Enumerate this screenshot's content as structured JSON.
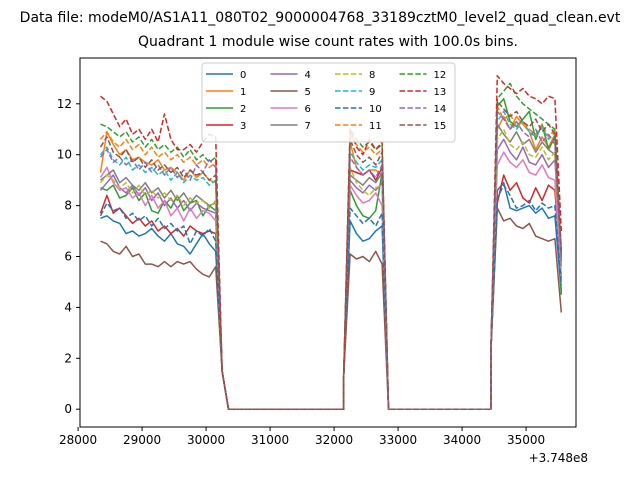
{
  "figure": {
    "suptitle": "Data file: modeM0/AS1A11_080T02_9000004768_33189cztM0_level2_quad_clean.evt",
    "title": "Quadrant 1 module wise count rates with 100.0s bins.",
    "x_offset_label": "+3.748e8"
  },
  "chart_data": {
    "type": "line",
    "title": "Quadrant 1 module wise count rates with 100.0s bins.",
    "xlabel": "",
    "ylabel": "",
    "x_offset": 374800000,
    "xlim": [
      28030,
      35780
    ],
    "ylim": [
      -0.7,
      13.8
    ],
    "xticks": [
      28000,
      29000,
      30000,
      31000,
      32000,
      33000,
      34000,
      35000
    ],
    "yticks": [
      0,
      2,
      4,
      6,
      8,
      10,
      12
    ],
    "grid": false,
    "legend": {
      "placement": "top-center",
      "columns": 4
    },
    "bin_width": 100,
    "segments": [
      {
        "x_start": 28350,
        "x_end": 30150,
        "y_end_drop": [
          1.5,
          0.0
        ]
      },
      {
        "x_start": 32250,
        "x_end": 32750
      },
      {
        "x_start": 34550,
        "x_end": 35450
      }
    ],
    "gap_ranges": [
      [
        30350,
        32150
      ],
      [
        32850,
        34450
      ]
    ],
    "series": [
      {
        "name": "0",
        "color": "#1f77b4",
        "dash": "solid",
        "seg1": [
          7.5,
          7.6,
          7.4,
          7.3,
          6.9,
          7.0,
          6.8,
          6.9,
          7.1,
          6.8,
          6.6,
          6.9,
          6.5,
          6.4,
          6.1,
          6.5,
          6.9,
          6.5,
          6.2
        ],
        "seg2": [
          7.4,
          6.9,
          6.6,
          6.7,
          7.0,
          7.2
        ],
        "seg3": [
          8.6,
          8.9,
          7.9,
          7.8,
          7.9,
          8.0,
          7.7,
          7.9,
          7.5,
          7.6,
          4.6
        ]
      },
      {
        "name": "1",
        "color": "#ff7f0e",
        "dash": "solid",
        "seg1": [
          9.3,
          10.9,
          10.4,
          10.0,
          10.2,
          9.8,
          9.9,
          9.7,
          9.6,
          9.8,
          9.4,
          9.5,
          9.3,
          9.0,
          9.4,
          9.1,
          9.3,
          9.0,
          8.9
        ],
        "seg2": [
          10.5,
          9.5,
          9.2,
          9.4,
          9.4,
          9.2
        ],
        "seg3": [
          11.0,
          11.5,
          11.0,
          11.5,
          11.2,
          10.9,
          10.2,
          10.7,
          10.3,
          10.8,
          5.6
        ]
      },
      {
        "name": "2",
        "color": "#2ca02c",
        "dash": "solid",
        "seg1": [
          8.7,
          8.6,
          8.8,
          8.3,
          8.4,
          8.7,
          8.2,
          8.5,
          7.8,
          7.7,
          8.2,
          7.9,
          8.4,
          7.8,
          8.1,
          8.2,
          7.6,
          8.0,
          7.8
        ],
        "seg2": [
          8.6,
          8.0,
          7.6,
          7.5,
          7.8,
          9.3
        ],
        "seg3": [
          11.9,
          12.2,
          11.3,
          11.1,
          11.4,
          11.7,
          10.6,
          11.2,
          10.2,
          10.7,
          4.5
        ]
      },
      {
        "name": "3",
        "color": "#d62728",
        "dash": "solid",
        "seg1": [
          7.7,
          8.4,
          7.7,
          7.9,
          7.6,
          7.3,
          7.5,
          7.2,
          7.4,
          7.0,
          7.2,
          6.9,
          7.1,
          6.8,
          7.2,
          7.0,
          6.9,
          7.0,
          6.9
        ],
        "seg2": [
          9.4,
          9.3,
          9.2,
          9.4,
          9.0,
          9.5
        ],
        "seg3": [
          8.1,
          9.2,
          8.6,
          8.9,
          8.3,
          8.1,
          8.7,
          8.2,
          8.8,
          8.6,
          5.2
        ]
      },
      {
        "name": "4",
        "color": "#9467bd",
        "dash": "solid",
        "seg1": [
          8.6,
          8.9,
          9.2,
          8.7,
          8.5,
          8.8,
          8.4,
          8.7,
          8.2,
          8.5,
          8.0,
          8.3,
          7.9,
          8.2,
          7.8,
          8.1,
          7.9,
          7.8,
          7.7
        ],
        "seg2": [
          9.0,
          8.7,
          8.5,
          8.8,
          8.6,
          8.9
        ],
        "seg3": [
          10.2,
          10.6,
          10.1,
          9.8,
          10.3,
          9.7,
          9.6,
          10.0,
          9.5,
          9.8,
          6.0
        ]
      },
      {
        "name": "5",
        "color": "#8c564b",
        "dash": "solid",
        "seg1": [
          6.6,
          6.5,
          6.2,
          6.1,
          6.4,
          6.0,
          6.1,
          5.7,
          5.7,
          5.6,
          5.8,
          5.6,
          5.8,
          5.7,
          5.8,
          5.5,
          5.3,
          5.2,
          5.6
        ],
        "seg2": [
          6.1,
          5.9,
          6.0,
          5.8,
          6.2,
          5.7
        ],
        "seg3": [
          7.9,
          7.4,
          7.5,
          7.2,
          7.1,
          7.3,
          6.8,
          6.7,
          6.6,
          6.7,
          3.8
        ]
      },
      {
        "name": "6",
        "color": "#e377c2",
        "dash": "solid",
        "seg1": [
          9.1,
          9.5,
          8.9,
          8.6,
          8.7,
          8.3,
          8.5,
          8.0,
          8.4,
          7.9,
          8.2,
          7.6,
          7.9,
          7.4,
          7.9,
          7.5,
          7.8,
          7.7,
          7.4
        ],
        "seg2": [
          8.8,
          8.4,
          8.1,
          8.2,
          8.5,
          8.0
        ],
        "seg3": [
          9.6,
          10.1,
          9.7,
          9.5,
          9.8,
          9.3,
          9.2,
          9.6,
          9.1,
          9.0,
          5.1
        ]
      },
      {
        "name": "7",
        "color": "#7f7f7f",
        "dash": "solid",
        "seg1": [
          9.0,
          9.2,
          9.4,
          8.9,
          9.1,
          8.8,
          8.6,
          8.9,
          8.5,
          8.7,
          8.3,
          8.6,
          8.2,
          8.5,
          8.1,
          8.4,
          8.2,
          8.0,
          8.1
        ],
        "seg2": [
          9.2,
          9.0,
          8.8,
          9.1,
          8.9,
          9.3
        ],
        "seg3": [
          11.2,
          10.8,
          10.5,
          10.9,
          10.4,
          10.6,
          10.1,
          10.5,
          10.2,
          10.0,
          5.9
        ]
      },
      {
        "name": "8",
        "color": "#bcbd22",
        "dash": "dashed",
        "seg1": [
          8.9,
          9.2,
          9.0,
          8.7,
          8.9,
          8.5,
          8.8,
          8.4,
          8.6,
          8.3,
          8.5,
          8.2,
          8.4,
          8.0,
          8.3,
          8.1,
          8.2,
          7.9,
          8.2
        ],
        "seg2": [
          9.5,
          8.9,
          8.6,
          8.4,
          8.7,
          8.8
        ],
        "seg3": [
          10.6,
          11.0,
          10.4,
          10.2,
          10.5,
          10.0,
          9.9,
          10.3,
          9.8,
          10.1,
          5.6
        ]
      },
      {
        "name": "9",
        "color": "#17becf",
        "dash": "dashed",
        "seg1": [
          10.0,
          10.3,
          9.8,
          9.6,
          9.9,
          9.4,
          9.6,
          9.3,
          9.5,
          9.2,
          9.4,
          9.0,
          9.3,
          8.9,
          9.2,
          9.0,
          9.1,
          8.8,
          9.0
        ],
        "seg2": [
          10.1,
          9.7,
          9.4,
          9.6,
          9.5,
          9.8
        ],
        "seg3": [
          11.3,
          11.7,
          11.2,
          11.0,
          11.3,
          10.9,
          10.7,
          11.1,
          10.6,
          10.9,
          6.1
        ]
      },
      {
        "name": "10",
        "color": "#1f77b4",
        "dash": "dashed",
        "seg1": [
          7.6,
          8.1,
          7.8,
          7.9,
          7.5,
          7.7,
          7.4,
          7.6,
          7.2,
          7.5,
          7.1,
          7.3,
          7.0,
          7.2,
          6.5,
          7.0,
          6.8,
          7.1,
          6.6
        ],
        "seg2": [
          7.9,
          7.6,
          7.3,
          7.5,
          7.2,
          7.7
        ],
        "seg3": [
          8.3,
          8.8,
          8.4,
          7.9,
          8.0,
          8.2,
          7.8,
          8.1,
          7.9,
          8.0,
          4.9
        ]
      },
      {
        "name": "11",
        "color": "#ff7f0e",
        "dash": "dashed",
        "seg1": [
          10.6,
          10.9,
          10.5,
          10.3,
          10.6,
          10.2,
          10.4,
          10.0,
          10.3,
          9.9,
          10.1,
          9.8,
          10.0,
          9.7,
          9.9,
          9.6,
          9.8,
          9.5,
          9.7
        ],
        "seg2": [
          10.8,
          10.4,
          10.1,
          10.3,
          10.0,
          10.2
        ],
        "seg3": [
          11.9,
          11.4,
          11.6,
          11.1,
          11.3,
          11.0,
          10.8,
          11.2,
          10.7,
          11.0,
          6.3
        ]
      },
      {
        "name": "12",
        "color": "#2ca02c",
        "dash": "dashed",
        "seg1": [
          11.2,
          11.1,
          10.9,
          10.7,
          10.9,
          10.5,
          10.7,
          10.3,
          10.6,
          10.2,
          10.4,
          10.1,
          10.3,
          9.9,
          10.2,
          9.8,
          10.0,
          9.7,
          9.9
        ],
        "seg2": [
          11.0,
          10.6,
          10.3,
          10.5,
          10.2,
          10.4
        ],
        "seg3": [
          12.2,
          12.5,
          12.8,
          12.3,
          12.0,
          11.8,
          11.6,
          11.4,
          11.2,
          11.0,
          6.0
        ]
      },
      {
        "name": "13",
        "color": "#d62728",
        "dash": "dashed",
        "seg1": [
          12.3,
          12.1,
          11.6,
          11.1,
          11.4,
          10.8,
          11.0,
          10.6,
          11.0,
          10.5,
          11.6,
          10.6,
          10.2,
          10.2,
          10.4,
          10.1,
          10.5,
          10.8,
          10.7
        ],
        "seg2": [
          11.0,
          10.3,
          10.0,
          10.6,
          10.2,
          10.5
        ],
        "seg3": [
          13.1,
          12.8,
          12.6,
          12.4,
          12.6,
          12.3,
          12.2,
          12.0,
          12.3,
          12.2,
          7.0
        ]
      },
      {
        "name": "14",
        "color": "#9467bd",
        "dash": "dashed",
        "seg1": [
          9.9,
          10.2,
          9.7,
          9.9,
          9.6,
          9.8,
          9.4,
          9.7,
          9.3,
          9.6,
          9.2,
          9.5,
          9.1,
          9.4,
          9.0,
          9.6,
          9.3,
          9.8,
          9.5
        ],
        "seg2": [
          9.9,
          9.5,
          9.2,
          9.4,
          9.1,
          9.6
        ],
        "seg3": [
          11.7,
          11.4,
          11.0,
          11.3,
          10.9,
          10.7,
          11.0,
          10.5,
          10.8,
          10.4,
          5.8
        ]
      },
      {
        "name": "15",
        "color": "#8c564b",
        "dash": "dashed",
        "seg1": [
          10.3,
          10.7,
          10.1,
          9.9,
          10.2,
          9.7,
          9.9,
          9.5,
          9.8,
          9.4,
          9.6,
          9.3,
          9.5,
          9.1,
          9.4,
          9.2,
          9.3,
          9.0,
          9.2
        ],
        "seg2": [
          10.6,
          10.0,
          9.7,
          9.9,
          9.6,
          10.1
        ],
        "seg3": [
          12.1,
          11.8,
          11.5,
          11.7,
          11.3,
          11.1,
          11.4,
          10.9,
          11.2,
          10.8,
          6.2
        ]
      }
    ]
  }
}
